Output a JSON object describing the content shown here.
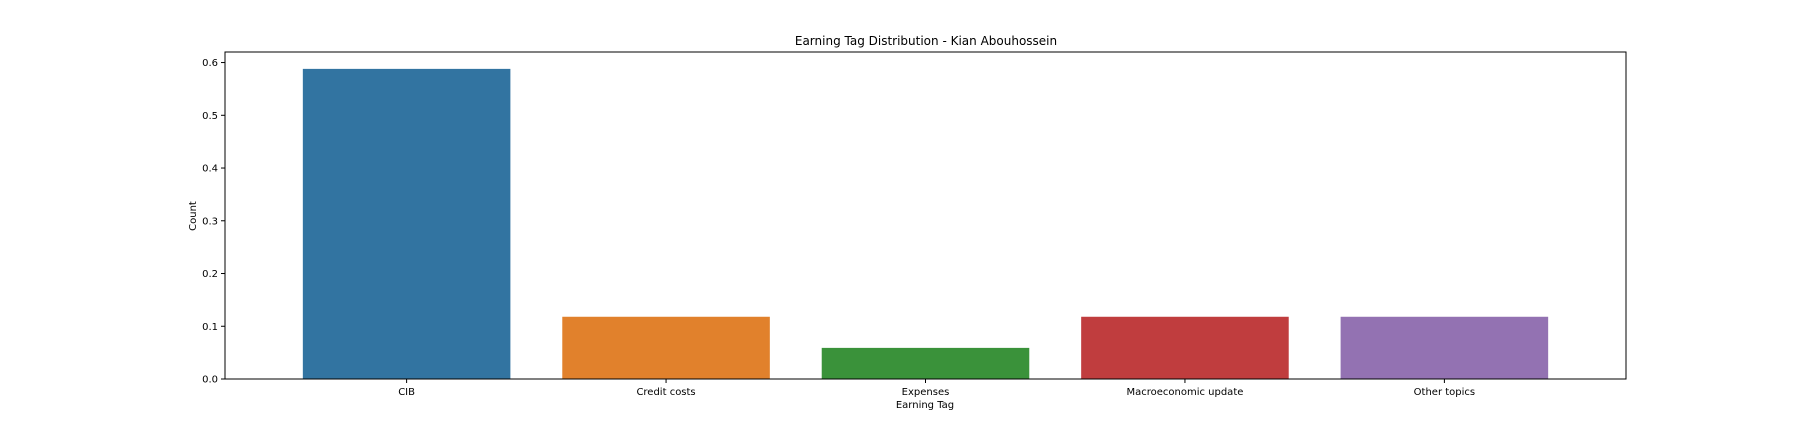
{
  "chart_data": {
    "type": "bar",
    "title": "Earning Tag Distribution - Kian Abouhossein",
    "xlabel": "Earning Tag",
    "ylabel": "Count",
    "categories": [
      "CIB",
      "Credit costs",
      "Expenses",
      "Macroeconomic update",
      "Other topics"
    ],
    "values": [
      0.588,
      0.118,
      0.059,
      0.118,
      0.118
    ],
    "colors": [
      "#3274a1",
      "#e1812c",
      "#3a923a",
      "#c03d3e",
      "#9372b2"
    ],
    "ylim": [
      0,
      0.62
    ],
    "yticks": [
      0.0,
      0.1,
      0.2,
      0.3,
      0.4,
      0.5,
      0.6
    ],
    "ytick_labels": [
      "0.0",
      "0.1",
      "0.2",
      "0.3",
      "0.4",
      "0.5",
      "0.6"
    ],
    "grid": false,
    "legend": "none"
  }
}
